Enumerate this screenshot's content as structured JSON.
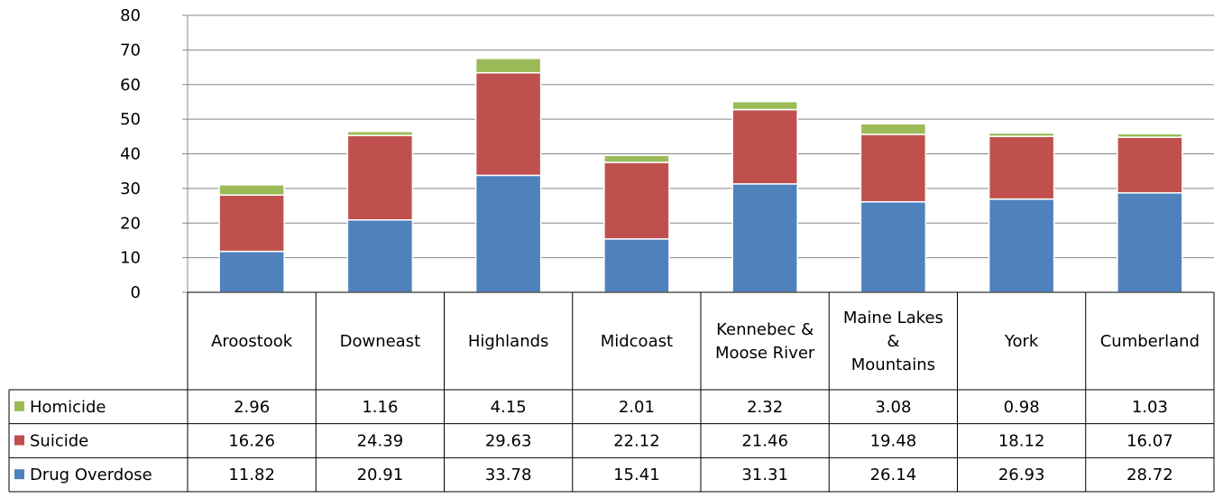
{
  "chart_data": {
    "type": "bar",
    "stacked": true,
    "categories": [
      "Aroostook",
      "Downeast",
      "Highlands",
      "Midcoast",
      "Kennebec & Moose River",
      "Maine Lakes & Mountains",
      "York",
      "Cumberland"
    ],
    "category_lines": [
      [
        "Aroostook"
      ],
      [
        "Downeast"
      ],
      [
        "Highlands"
      ],
      [
        "Midcoast"
      ],
      [
        "Kennebec &",
        "Moose River"
      ],
      [
        "Maine Lakes",
        "&",
        "Mountains"
      ],
      [
        "York"
      ],
      [
        "Cumberland"
      ]
    ],
    "series": [
      {
        "name": "Drug Overdose",
        "color": "#4f81bd",
        "values": [
          11.82,
          20.91,
          33.78,
          15.41,
          31.31,
          26.14,
          26.93,
          28.72
        ],
        "labels": [
          "11.82",
          "20.91",
          "33.78",
          "15.41",
          "31.31",
          "26.14",
          "26.93",
          "28.72"
        ]
      },
      {
        "name": "Suicide",
        "color": "#c0504d",
        "values": [
          16.26,
          24.39,
          29.63,
          22.12,
          21.46,
          19.48,
          18.12,
          16.07
        ],
        "labels": [
          "16.26",
          "24.39",
          "29.63",
          "22.12",
          "21.46",
          "19.48",
          "18.12",
          "16.07"
        ]
      },
      {
        "name": "Homicide",
        "color": "#9bbb59",
        "values": [
          2.96,
          1.16,
          4.15,
          2.01,
          2.32,
          3.08,
          0.98,
          1.03
        ],
        "labels": [
          "2.96",
          "1.16",
          "4.15",
          "2.01",
          "2.32",
          "3.08",
          "0.98",
          "1.03"
        ]
      }
    ],
    "table_row_order": [
      "Homicide",
      "Suicide",
      "Drug Overdose"
    ],
    "ylim": [
      0,
      80
    ],
    "yticks": [
      "0",
      "10",
      "20",
      "30",
      "40",
      "50",
      "60",
      "70",
      "80"
    ],
    "grid": true,
    "legend": "data-table",
    "title": "",
    "xlabel": "",
    "ylabel": ""
  }
}
